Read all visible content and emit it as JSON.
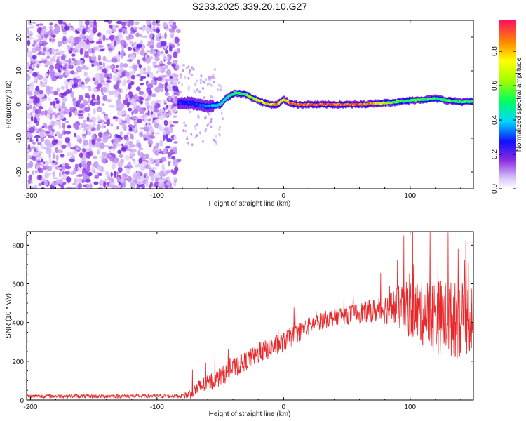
{
  "title": "S233.2025.339.20.10.G27",
  "chart_data": [
    {
      "type": "heatmap",
      "name": "spectrogram",
      "xlabel": "Height of straight line (km)",
      "ylabel": "Frequency (Hz)",
      "xlim": [
        -203,
        150
      ],
      "ylim": [
        -25,
        25
      ],
      "xticks": [
        -200,
        -100,
        0,
        100
      ],
      "yticks": [
        -20,
        -10,
        0,
        10,
        20
      ],
      "colorbar": {
        "label": "Normalized spectral amplitude",
        "range": [
          0,
          0.98
        ],
        "ticks": [
          0.0,
          0.2,
          0.4,
          0.6,
          0.8
        ]
      },
      "noise_region_x": [
        -203,
        -83
      ],
      "signal_ridge": {
        "x": [
          -83,
          -75,
          -60,
          -50,
          -45,
          -38,
          -30,
          -22,
          -15,
          -10,
          -5,
          0,
          5,
          10,
          20,
          40,
          60,
          70,
          80,
          90,
          100,
          110,
          120,
          130,
          140,
          150
        ],
        "freq": [
          0.5,
          0.5,
          -0.5,
          0,
          2,
          3.5,
          3,
          1.5,
          0.5,
          0,
          0,
          1.5,
          0.5,
          0,
          0,
          0,
          0,
          0.3,
          0.5,
          0.8,
          1.2,
          1.5,
          1.8,
          1.2,
          0.8,
          1.0
        ],
        "amplitude": [
          0.25,
          0.3,
          0.35,
          0.45,
          0.5,
          0.55,
          0.6,
          0.7,
          0.8,
          0.85,
          0.9,
          0.8,
          0.9,
          0.95,
          0.98,
          0.98,
          0.98,
          0.9,
          0.7,
          0.6,
          0.55,
          0.6,
          0.55,
          0.6,
          0.55,
          0.6
        ]
      }
    },
    {
      "type": "line",
      "name": "snr",
      "xlabel": "Height of straight line (km)",
      "ylabel": "SNR (10 * v/v)",
      "xlim": [
        -203,
        150
      ],
      "ylim": [
        0,
        870
      ],
      "xticks": [
        -200,
        -100,
        0,
        100
      ],
      "yticks": [
        0,
        200,
        400,
        600,
        800
      ],
      "color": "#e8282a",
      "trend": {
        "x": [
          -203,
          -80,
          -75,
          -65,
          -50,
          -35,
          -20,
          -10,
          0,
          10,
          20,
          30,
          40,
          50,
          60,
          70,
          80,
          90,
          100,
          110,
          120,
          130,
          140,
          150
        ],
        "y": [
          20,
          20,
          30,
          70,
          120,
          180,
          240,
          270,
          300,
          340,
          380,
          410,
          430,
          440,
          450,
          460,
          470,
          480,
          470,
          450,
          430,
          420,
          410,
          430
        ]
      },
      "spread": {
        "x": [
          -203,
          -80,
          -70,
          -50,
          -30,
          -10,
          10,
          30,
          50,
          70,
          85,
          100,
          120,
          140,
          150
        ],
        "y": [
          10,
          10,
          40,
          50,
          50,
          55,
          50,
          45,
          50,
          60,
          90,
          150,
          200,
          200,
          180
        ]
      },
      "peaks": [
        {
          "x": 95,
          "y": 850
        },
        {
          "x": 122,
          "y": 830
        },
        {
          "x": 130,
          "y": 865
        },
        {
          "x": 138,
          "y": 780
        },
        {
          "x": 146,
          "y": 710
        }
      ]
    }
  ]
}
